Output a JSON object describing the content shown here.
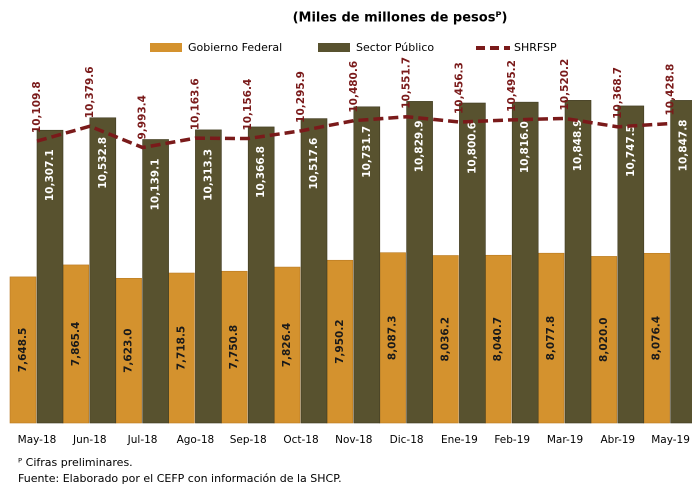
{
  "chart_data": {
    "type": "bar-line",
    "title": "(Miles de millones de pesosᴾ)",
    "categories": [
      "May-18",
      "Jun-18",
      "Jul-18",
      "Ago-18",
      "Sep-18",
      "Oct-18",
      "Nov-18",
      "Dic-18",
      "Ene-19",
      "Feb-19",
      "Mar-19",
      "Abr-19",
      "May-19"
    ],
    "series": [
      {
        "name": "Gobierno Federal",
        "type": "bar",
        "color": "#d4922e",
        "values": [
          7648.5,
          7865.4,
          7623.0,
          7718.5,
          7750.8,
          7826.4,
          7950.2,
          8087.3,
          8036.2,
          8040.7,
          8077.8,
          8020.0,
          8076.4
        ],
        "value_labels": [
          "7,648.5",
          "7,865.4",
          "7,623.0",
          "7,718.5",
          "7,750.8",
          "7,826.4",
          "7,950.2",
          "8,087.3",
          "8,036.2",
          "8,040.7",
          "8,077.8",
          "8,020.0",
          "8,076.4"
        ]
      },
      {
        "name": "Sector Público",
        "type": "bar",
        "color": "#58522f",
        "values": [
          10307.1,
          10532.8,
          10139.1,
          10313.3,
          10366.8,
          10517.6,
          10731.7,
          10829.9,
          10800.6,
          10816.0,
          10848.9,
          10747.5,
          10847.8
        ],
        "value_labels": [
          "10,307.1",
          "10,532.8",
          "10,139.1",
          "10,313.3",
          "10,366.8",
          "10,517.6",
          "10,731.7",
          "10,829.9",
          "10,800.6",
          "10,816.0",
          "10,848.9",
          "10,747.5",
          "10,847.8"
        ]
      },
      {
        "name": "SHRFSP",
        "type": "line",
        "color": "#7a1a1a",
        "values": [
          10109.8,
          10379.6,
          9993.4,
          10163.6,
          10156.4,
          10295.9,
          10480.6,
          10551.7,
          10456.3,
          10495.2,
          10520.2,
          10368.7,
          10428.8
        ],
        "value_labels": [
          "10,109.8",
          "10,379.6",
          "9,993.4",
          "10,163.6",
          "10,156.4",
          "10,295.9",
          "10,480.6",
          "10,551.7",
          "10,456.3",
          "10,495.2",
          "10,520.2",
          "10,368.7",
          "10,428.8"
        ]
      }
    ],
    "ylim": [
      5000,
      11000
    ],
    "legend": "top",
    "notes": [
      "ᴾ Cifras preliminares.",
      "Fuente: Elaborado por el CEFP con información de la SHCP."
    ]
  }
}
